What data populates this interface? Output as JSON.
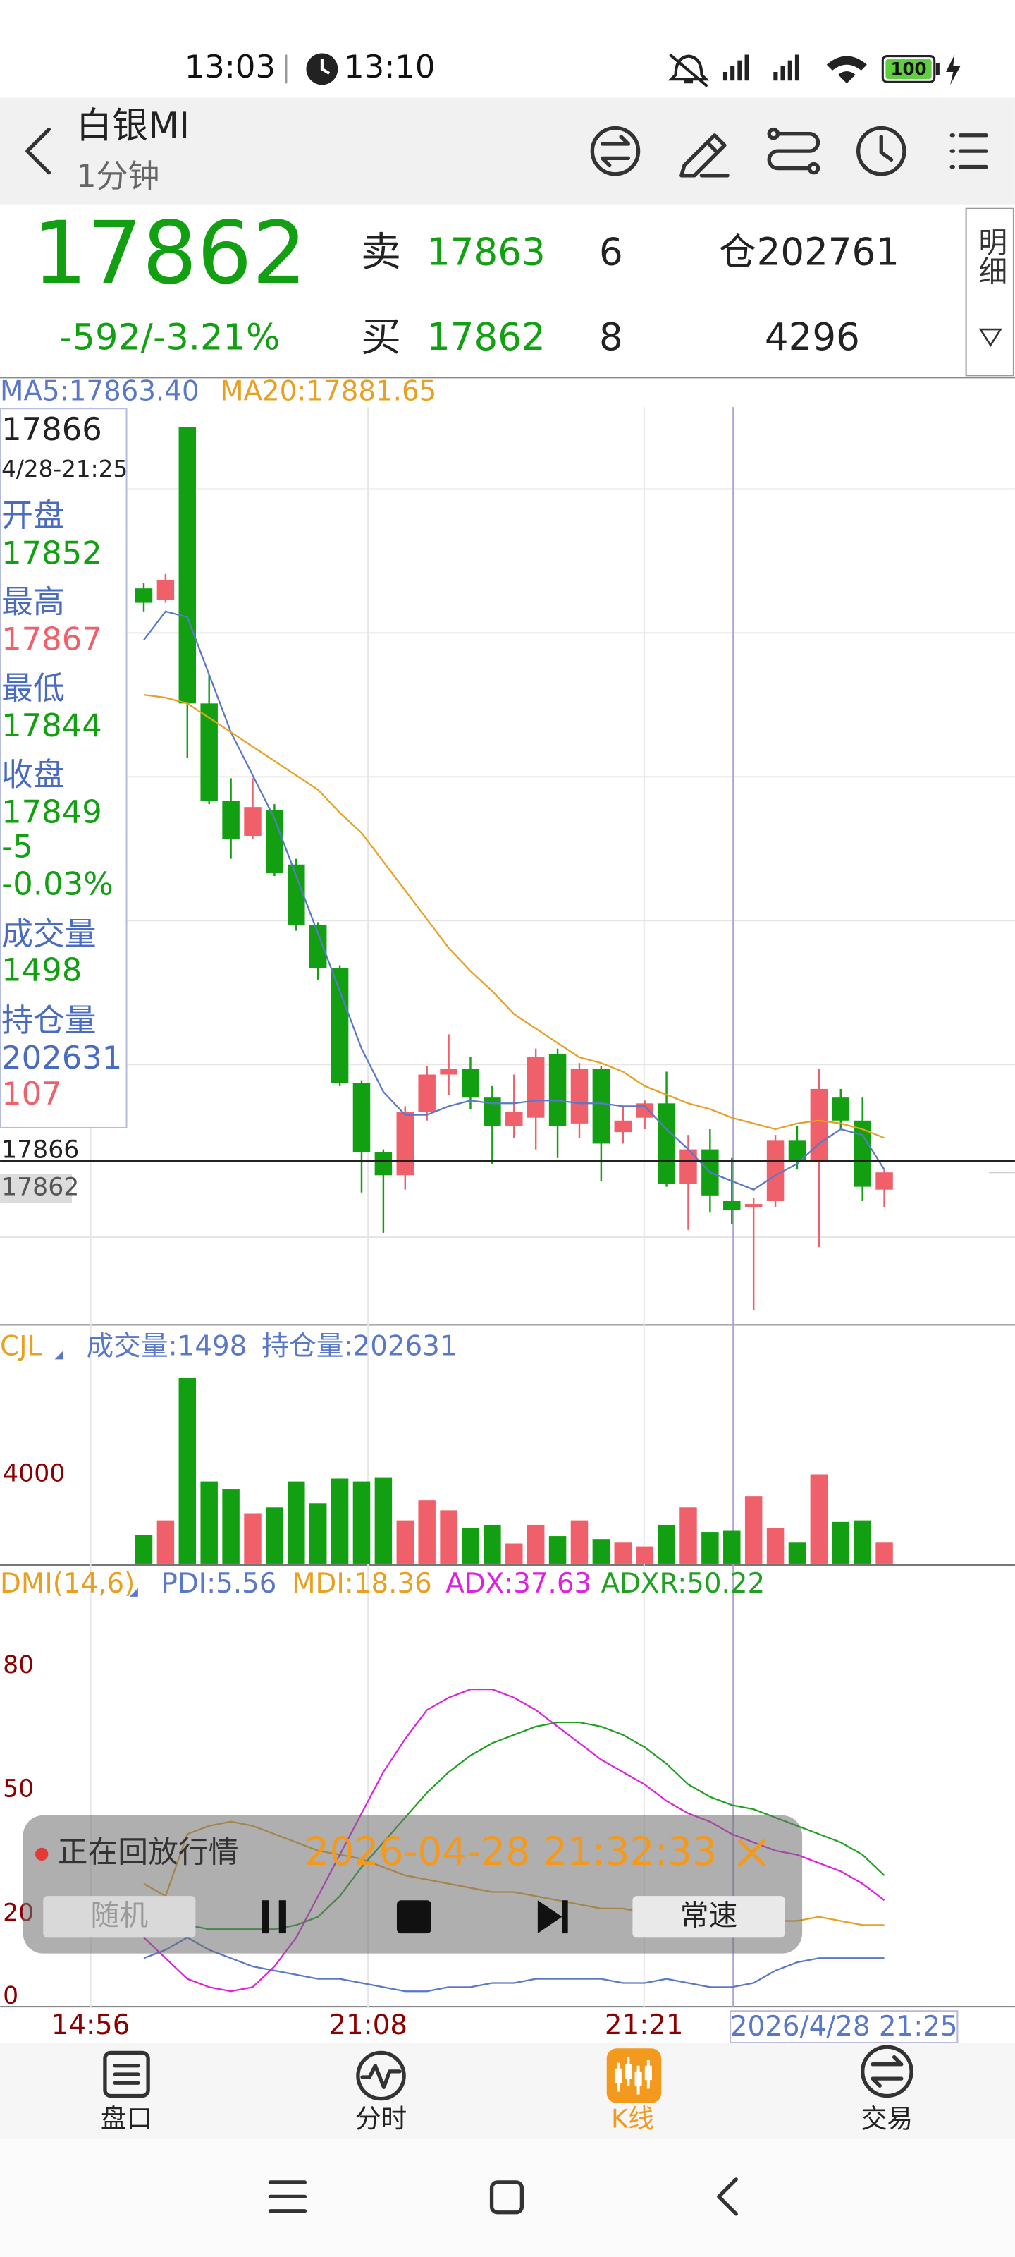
{
  "status_bar": {
    "time": "13:03",
    "clock_time": "13:10",
    "battery": "100"
  },
  "header": {
    "title": "白银MI",
    "period": "1分钟"
  },
  "quote": {
    "price": "17862",
    "change": "-592/-3.21%",
    "sell_label": "卖",
    "sell_price": "17863",
    "sell_volume": "6",
    "position_label": "仓",
    "position": "202761",
    "buy_label": "买",
    "buy_price": "17862",
    "buy_volume": "8",
    "position_change": "4296",
    "detail": "明细"
  },
  "kline": {
    "type": "candlestick",
    "up_color": "#f0606a",
    "down_color": "#12a012",
    "ylim": [
      17809,
      18127
    ],
    "open": [
      18065,
      18061,
      18121,
      18025,
      17991,
      17979,
      17988,
      17969,
      17948,
      17933,
      17893,
      17869,
      17861,
      17883,
      17896,
      17898,
      17888,
      17878,
      17881,
      17903,
      17879,
      17898,
      17876,
      17881,
      17886,
      17858,
      17870,
      17852,
      17850,
      17852,
      17873,
      17866,
      17888,
      17880,
      17856
    ],
    "high": [
      18067,
      18070,
      18121,
      18035,
      17999,
      17999,
      17990,
      17971,
      17949,
      17934,
      17894,
      17870,
      17885,
      17899,
      17910,
      17902,
      17892,
      17896,
      17905,
      17905,
      17900,
      17899,
      17885,
      17887,
      17897,
      17875,
      17877,
      17867,
      17853,
      17875,
      17878,
      17898,
      17891,
      17888,
      17863
    ],
    "low": [
      18057,
      18060,
      18006,
      17990,
      17971,
      17978,
      17965,
      17946,
      17929,
      17892,
      17855,
      17841,
      17856,
      17880,
      17889,
      17884,
      17865,
      17874,
      17870,
      17867,
      17874,
      17859,
      17872,
      17877,
      17857,
      17842,
      17848,
      17844,
      17814,
      17850,
      17863,
      17836,
      17877,
      17852,
      17850
    ],
    "close": [
      18060,
      18068,
      18025,
      17991,
      17978,
      17989,
      17966,
      17948,
      17933,
      17893,
      17869,
      17861,
      17883,
      17896,
      17898,
      17888,
      17878,
      17883,
      17902,
      17878,
      17898,
      17872,
      17880,
      17886,
      17858,
      17870,
      17854,
      17849,
      17851,
      17873,
      17866,
      17891,
      17880,
      17857,
      17862
    ],
    "ma_series": [
      {
        "name": "MA5:17863.40",
        "color": "#5a78c8",
        "values": [
          18047,
          18057,
          18055,
          18035,
          18015,
          18000,
          17985,
          17965,
          17945,
          17925,
          17905,
          17890,
          17882,
          17882,
          17885,
          17887,
          17886,
          17886,
          17887,
          17887,
          17886,
          17886,
          17885,
          17885,
          17877,
          17870,
          17862,
          17859,
          17856,
          17861,
          17865,
          17872,
          17877,
          17875,
          17863
        ]
      },
      {
        "name": "MA20:17881.65",
        "color": "#e8a020",
        "values": [
          18028,
          18027,
          18025,
          18020,
          18015,
          18010,
          18005,
          18000,
          17995,
          17987,
          17980,
          17970,
          17960,
          17950,
          17940,
          17932,
          17925,
          17917,
          17912,
          17907,
          17902,
          17900,
          17897,
          17892,
          17889,
          17886,
          17884,
          17881,
          17879,
          17877,
          17879,
          17880,
          17879,
          17877,
          17874
        ]
      }
    ],
    "cursor_price": 17866,
    "last_price": 17862,
    "time_labels": [
      "14:56",
      "21:08",
      "21:21"
    ],
    "cursor_time": "2026/4/28 21:25"
  },
  "info_panel": [
    "17866",
    "4/28-21:25",
    "开盘",
    "17852",
    "最高",
    "17867",
    "最低",
    "17844",
    "收盘",
    "17849",
    "-5",
    "-0.03%",
    "成交量",
    "1498",
    "持仓量",
    "202631",
    "107"
  ],
  "volume": {
    "type": "bar",
    "indicator": "CJL",
    "legend": [
      "成交量:1498",
      "持仓量:202631"
    ],
    "ylim": [
      0,
      10450
    ],
    "yticks": [
      4000
    ],
    "values": [
      1290,
      1940,
      8320,
      3680,
      3350,
      2260,
      2520,
      3680,
      2710,
      3810,
      3680,
      3870,
      1940,
      2840,
      2390,
      1610,
      1740,
      900,
      1740,
      1230,
      1940,
      1100,
      970,
      770,
      1740,
      2520,
      1420,
      1500,
      3030,
      1610,
      970,
      4000,
      1870,
      1940,
      970
    ]
  },
  "dmi": {
    "type": "line",
    "indicator": "DMI(14,6)",
    "ylim": [
      0,
      96
    ],
    "yticks": [
      0,
      20,
      50,
      80
    ],
    "series": [
      {
        "name": "PDI:5.56",
        "color": "#5a78c8",
        "values": [
          10,
          12,
          15,
          12,
          10,
          8,
          7,
          6,
          5,
          5,
          4,
          3,
          2,
          2,
          3,
          3,
          4,
          4,
          5,
          5,
          5,
          5,
          4,
          4,
          5,
          4,
          3,
          3,
          4,
          7,
          9,
          10,
          10,
          10,
          10
        ]
      },
      {
        "name": "MDI:18.36",
        "color": "#e8a020",
        "values": [
          28,
          25,
          40,
          42,
          43,
          42,
          40,
          38,
          36,
          35,
          34,
          32,
          30,
          29,
          28,
          27,
          26,
          26,
          25,
          24,
          23,
          22,
          22,
          21,
          21,
          20,
          20,
          19,
          18,
          19,
          19,
          20,
          19,
          18,
          18
        ]
      },
      {
        "name": "ADX:37.63",
        "color": "#e020e0",
        "values": [
          15,
          10,
          5,
          3,
          2,
          3,
          8,
          15,
          25,
          35,
          45,
          55,
          63,
          70,
          73,
          75,
          75,
          73,
          70,
          66,
          62,
          58,
          55,
          52,
          48,
          45,
          43,
          40,
          38,
          36,
          35,
          33,
          31,
          28,
          24
        ]
      },
      {
        "name": "ADXR:50.22",
        "color": "#22a022",
        "values": [
          22,
          20,
          18,
          17,
          17,
          17,
          17,
          18,
          20,
          25,
          32,
          38,
          44,
          50,
          55,
          59,
          62,
          64,
          66,
          67,
          67,
          66,
          64,
          61,
          57,
          52,
          49,
          47,
          46,
          44,
          42,
          40,
          38,
          35,
          30
        ]
      }
    ]
  },
  "replay": {
    "status": "正在回放行情",
    "time": "2026-04-28 21:32:33",
    "random": "随机",
    "speed": "常速"
  },
  "nav": [
    "盘口",
    "分时",
    "K线",
    "交易"
  ]
}
